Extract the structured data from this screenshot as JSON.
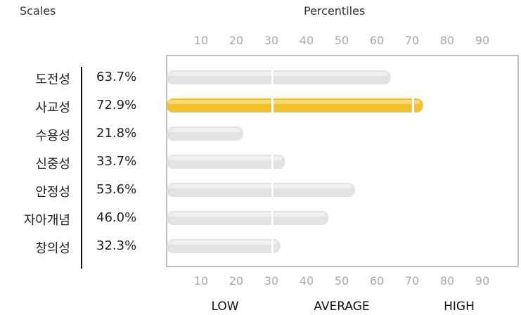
{
  "headers": {
    "scales": "Scales",
    "percentiles": "Percentiles"
  },
  "bands": {
    "low": "LOW",
    "average": "AVERAGE",
    "high": "HIGH"
  },
  "chart_data": {
    "type": "bar",
    "orientation": "horizontal",
    "categories": [
      "도전성",
      "사교성",
      "수용성",
      "신중성",
      "안정성",
      "자아개념",
      "창의성"
    ],
    "values": [
      63.7,
      72.9,
      21.8,
      33.7,
      53.6,
      46.0,
      32.3
    ],
    "value_labels": [
      "63.7%",
      "72.9%",
      "21.8%",
      "33.7%",
      "53.6%",
      "46.0%",
      "32.3%"
    ],
    "highlighted": "사교성",
    "x_ticks": [
      10,
      20,
      30,
      40,
      50,
      60,
      70,
      80,
      90
    ],
    "xlim": [
      0,
      100
    ],
    "xlabel": "Percentiles",
    "band_boundaries": [
      30,
      70
    ],
    "colors": {
      "default_bar": "#e2e2e2",
      "highlight_bar": "#f2c12e",
      "frame": "#bfbfbf",
      "tick_text": "#aaaaaa"
    }
  }
}
